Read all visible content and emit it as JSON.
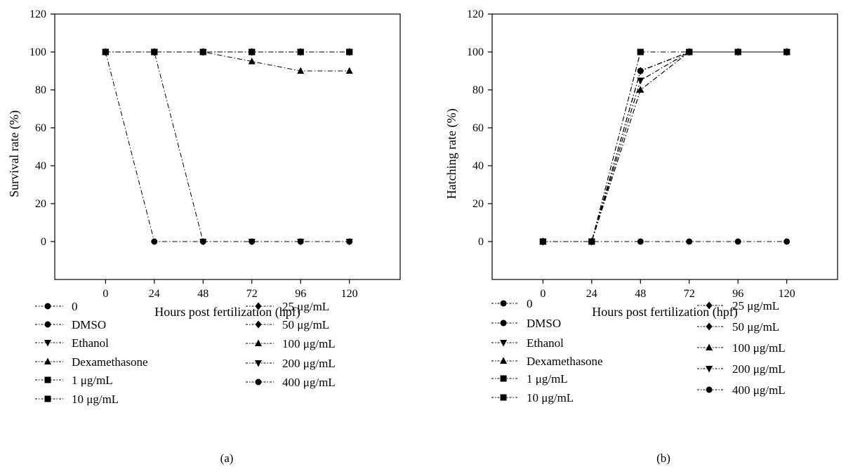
{
  "chart_data": [
    {
      "type": "line",
      "panel_label": "(a)",
      "xlabel": "Hours post fertilization (hpf)",
      "ylabel": "Survival rate (%)",
      "x": [
        0,
        24,
        48,
        72,
        96,
        120
      ],
      "xlim": [
        -25,
        145
      ],
      "ylim": [
        -20,
        120
      ],
      "yticks": [
        0,
        20,
        40,
        60,
        80,
        100,
        120
      ],
      "xticks": [
        0,
        24,
        48,
        72,
        96,
        120
      ],
      "grid": false,
      "legend_placement": "bottom",
      "series": [
        {
          "name": "0",
          "marker": "circle",
          "values": [
            100,
            100,
            100,
            100,
            100,
            100
          ]
        },
        {
          "name": "DMSO",
          "marker": "circle",
          "values": [
            100,
            100,
            100,
            100,
            100,
            100
          ]
        },
        {
          "name": "Ethanol",
          "marker": "triangle-down",
          "values": [
            100,
            100,
            100,
            100,
            100,
            100
          ]
        },
        {
          "name": "Dexamethasone",
          "marker": "triangle-up",
          "values": [
            100,
            100,
            100,
            95,
            90,
            90
          ]
        },
        {
          "name": "1 μg/mL",
          "marker": "square",
          "values": [
            100,
            100,
            100,
            100,
            100,
            100
          ]
        },
        {
          "name": "10 μg/mL",
          "marker": "square",
          "values": [
            100,
            100,
            100,
            100,
            100,
            100
          ]
        },
        {
          "name": "25 μg/mL",
          "marker": "diamond",
          "values": [
            100,
            100,
            100,
            100,
            100,
            100
          ]
        },
        {
          "name": "50 μg/mL",
          "marker": "diamond",
          "values": [
            100,
            100,
            100,
            100,
            100,
            100
          ]
        },
        {
          "name": "100 μg/mL",
          "marker": "triangle-up",
          "values": [
            100,
            100,
            100,
            100,
            100,
            100
          ]
        },
        {
          "name": "200 μg/mL",
          "marker": "triangle-down",
          "values": [
            100,
            100,
            0,
            0,
            0,
            0
          ]
        },
        {
          "name": "400 μg/mL",
          "marker": "circle",
          "values": [
            100,
            0,
            0,
            0,
            0,
            0
          ]
        }
      ]
    },
    {
      "type": "line",
      "panel_label": "(b)",
      "xlabel": "Hours post fertilization (hpf)",
      "ylabel": "Hatching rate (%)",
      "x": [
        0,
        24,
        48,
        72,
        96,
        120
      ],
      "xlim": [
        -25,
        145
      ],
      "ylim": [
        -20,
        120
      ],
      "yticks": [
        0,
        20,
        40,
        60,
        80,
        100,
        120
      ],
      "xticks": [
        0,
        24,
        48,
        72,
        96,
        120
      ],
      "grid": false,
      "legend_placement": "bottom",
      "series": [
        {
          "name": "0",
          "marker": "circle",
          "values": [
            0,
            0,
            90,
            100,
            100,
            100
          ]
        },
        {
          "name": "DMSO",
          "marker": "circle",
          "values": [
            0,
            0,
            90,
            100,
            100,
            100
          ]
        },
        {
          "name": "Ethanol",
          "marker": "triangle-down",
          "values": [
            0,
            0,
            85,
            100,
            100,
            100
          ]
        },
        {
          "name": "Dexamethasone",
          "marker": "triangle-up",
          "values": [
            0,
            0,
            80,
            100,
            100,
            100
          ]
        },
        {
          "name": "1 μg/mL",
          "marker": "square",
          "values": [
            0,
            0,
            100,
            100,
            100,
            100
          ]
        },
        {
          "name": "10 μg/mL",
          "marker": "square",
          "values": [
            0,
            0,
            100,
            100,
            100,
            100
          ]
        },
        {
          "name": "25 μg/mL",
          "marker": "diamond",
          "values": [
            0,
            0,
            90,
            100,
            100,
            100
          ]
        },
        {
          "name": "50 μg/mL",
          "marker": "diamond",
          "values": [
            0,
            0,
            90,
            100,
            100,
            100
          ]
        },
        {
          "name": "100 μg/mL",
          "marker": "triangle-up",
          "values": [
            0,
            0,
            80,
            100,
            100,
            100
          ]
        },
        {
          "name": "200 μg/mL",
          "marker": "triangle-down",
          "values": [
            0,
            0,
            85,
            100,
            100,
            100
          ]
        },
        {
          "name": "400 μg/mL",
          "marker": "circle",
          "values": [
            0,
            0,
            0,
            0,
            0,
            0
          ]
        }
      ]
    }
  ]
}
